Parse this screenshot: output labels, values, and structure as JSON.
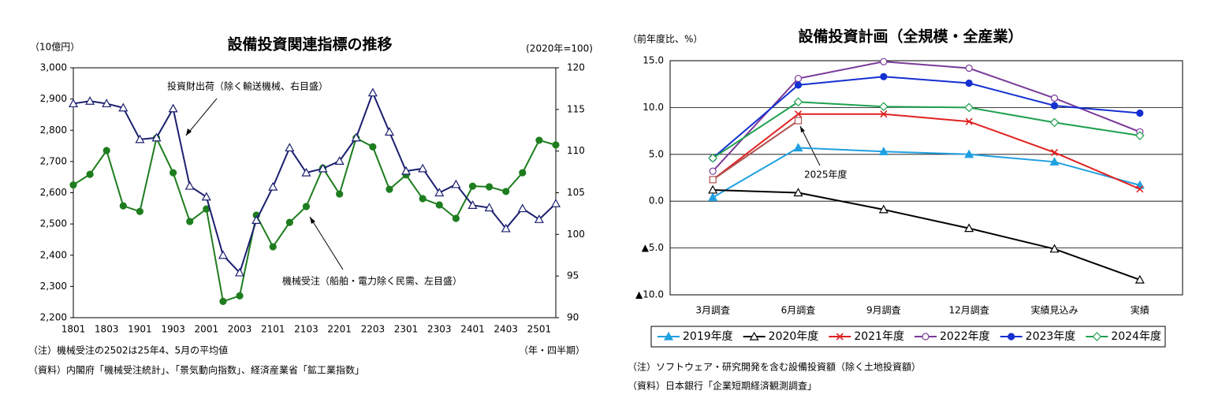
{
  "chart_data": [
    {
      "type": "line",
      "title": "設備投資関連指標の推移",
      "y_label": "（10億円）",
      "y2_label": "(2020年=100)",
      "x_label": "（年・四半期）",
      "note": "（注）機械受注の2502は25年4、5月の平均値",
      "source": "（資料）内閣府「機械受注統計」、「景気動向指数」、経済産業省「鉱工業指数」",
      "annotations": [
        "投資財出荷（除く輸送機械、右目盛）",
        "機械受注（船舶・電力除く民需、左目盛）"
      ],
      "categories": [
        "1801",
        null,
        "1803",
        null,
        "1901",
        null,
        "1903",
        null,
        "2001",
        null,
        "2003",
        null,
        "2101",
        null,
        "2103",
        null,
        "2201",
        null,
        "2203",
        null,
        "2301",
        null,
        "2303",
        null,
        "2401",
        null,
        "2403",
        null,
        "2501",
        null
      ],
      "ylim": [
        2200,
        3000
      ],
      "yticks": [
        {
          "value": 2200,
          "label": "2,200"
        },
        {
          "value": 2300,
          "label": "2,300"
        },
        {
          "value": 2400,
          "label": "2,400"
        },
        {
          "value": 2500,
          "label": "2,500"
        },
        {
          "value": 2600,
          "label": "2,600"
        },
        {
          "value": 2700,
          "label": "2,700"
        },
        {
          "value": 2800,
          "label": "2,800"
        },
        {
          "value": 2900,
          "label": "2,900"
        },
        {
          "value": 3000,
          "label": "3,000"
        }
      ],
      "y2lim": [
        90,
        120
      ],
      "y2ticks": [
        90,
        95,
        100,
        105,
        110,
        115,
        120
      ],
      "grid": false,
      "series": [
        {
          "name": "機械受注",
          "color": "#1e7d1e",
          "marker": "circle",
          "filled": true,
          "axis": "y",
          "values": [
            2625,
            2659,
            2735,
            2558,
            2540,
            2775,
            2664,
            2508,
            2548,
            2252,
            2270,
            2528,
            2427,
            2505,
            2556,
            2679,
            2596,
            2775,
            2747,
            2611,
            2657,
            2581,
            2561,
            2518,
            2621,
            2619,
            2604,
            2664,
            2768,
            2753
          ]
        },
        {
          "name": "投資財出荷",
          "color": "#1a1f6e",
          "marker": "triangle",
          "filled": false,
          "axis": "y2",
          "values": [
            115.7,
            116.0,
            115.7,
            115.2,
            111.4,
            111.6,
            115.1,
            105.8,
            104.5,
            97.5,
            95.4,
            101.7,
            105.7,
            110.4,
            107.4,
            107.9,
            108.8,
            111.6,
            117.0,
            112.3,
            107.6,
            107.9,
            105.0,
            106.0,
            103.5,
            103.2,
            100.7,
            103.1,
            101.8,
            103.7
          ]
        }
      ]
    },
    {
      "type": "line",
      "title": "設備投資計画（全規模・全産業）",
      "y_label": "（前年度比、%）",
      "note": "（注）ソフトウェア・研究開発を含む設備投資額（除く土地投資額）",
      "source": "（資料）日本銀行「企業短期経済観測調査」",
      "categories": [
        "3月調査",
        "6月調査",
        "9月調査",
        "12月調査",
        "実績見込み",
        "実績"
      ],
      "ylim": [
        -10,
        15
      ],
      "yticks": [
        {
          "value": -10,
          "label": "▲10.0"
        },
        {
          "value": -5,
          "label": "▲5.0"
        },
        {
          "value": 0,
          "label": "0.0"
        },
        {
          "value": 5,
          "label": "5.0"
        },
        {
          "value": 10,
          "label": "10.0"
        },
        {
          "value": 15,
          "label": "15.0"
        }
      ],
      "grid": true,
      "series": [
        {
          "name": "2019年度",
          "color": "#1fa0e0",
          "marker": "triangle",
          "filled": true,
          "values": [
            0.4,
            5.7,
            5.3,
            5.0,
            4.2,
            1.7
          ]
        },
        {
          "name": "2020年度",
          "color": "#000000",
          "marker": "triangle",
          "filled": false,
          "values": [
            1.2,
            0.9,
            -0.9,
            -2.9,
            -5.1,
            -8.4
          ]
        },
        {
          "name": "2021年度",
          "color": "#e02020",
          "marker": "x",
          "filled": false,
          "values": [
            2.3,
            9.3,
            9.3,
            8.5,
            5.2,
            1.3
          ]
        },
        {
          "name": "2022年度",
          "color": "#7a3a9a",
          "marker": "circle",
          "filled": false,
          "values": [
            3.2,
            13.1,
            14.9,
            14.2,
            11.0,
            7.4
          ]
        },
        {
          "name": "2023年度",
          "color": "#1530d0",
          "marker": "circle",
          "filled": true,
          "values": [
            4.6,
            12.4,
            13.3,
            12.6,
            10.2,
            9.4
          ]
        },
        {
          "name": "2024年度",
          "color": "#20a050",
          "marker": "diamond",
          "filled": false,
          "values": [
            4.6,
            10.6,
            10.1,
            10.0,
            8.4,
            7.0
          ]
        },
        {
          "name": "2025年度",
          "color": "#b05050",
          "marker": "square",
          "filled": false,
          "in_legend": false,
          "values": [
            2.3,
            8.6,
            null,
            null,
            null,
            null
          ]
        }
      ]
    }
  ]
}
